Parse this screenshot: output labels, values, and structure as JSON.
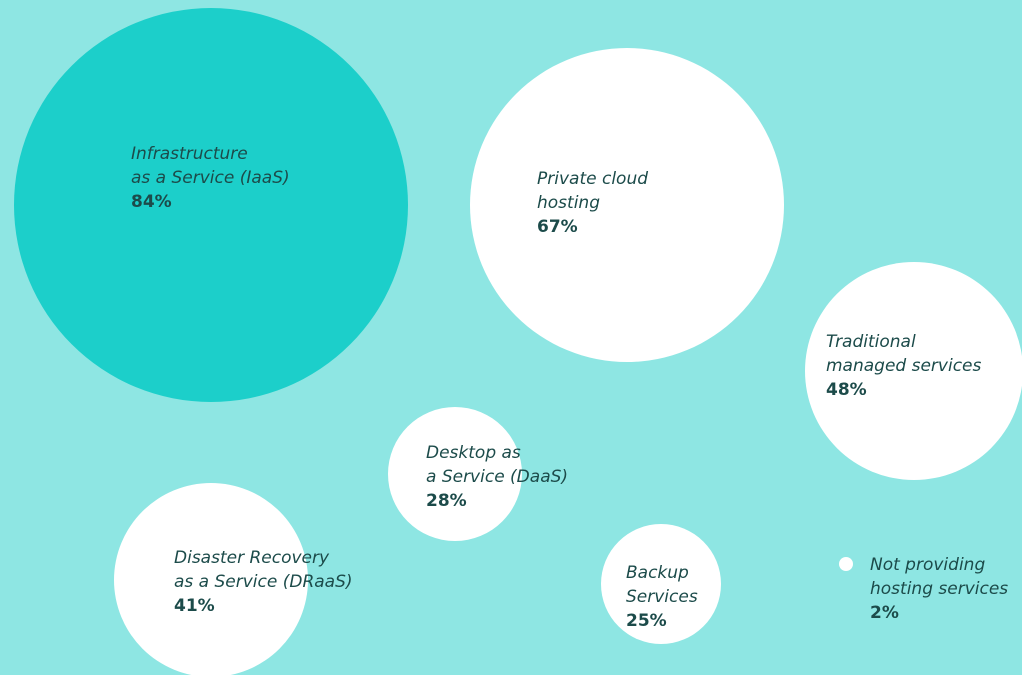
{
  "chart_data": {
    "type": "bubble",
    "unit": "%",
    "colors": {
      "background": "#8ee6e3",
      "highlight": "#1ccfca",
      "bubble": "#ffffff",
      "text": "#1c4b4a"
    },
    "series": [
      {
        "lines": [
          "Infrastructure",
          "as a Service (IaaS)"
        ],
        "value": 84,
        "display": "84%",
        "highlight": true
      },
      {
        "lines": [
          "Private cloud",
          "hosting"
        ],
        "value": 67,
        "display": "67%",
        "highlight": false
      },
      {
        "lines": [
          "Traditional",
          "managed services"
        ],
        "value": 48,
        "display": "48%",
        "highlight": false
      },
      {
        "lines": [
          "Desktop as",
          "a Service (DaaS)"
        ],
        "value": 28,
        "display": "28%",
        "highlight": false
      },
      {
        "lines": [
          "Disaster Recovery",
          "as a Service (DRaaS)"
        ],
        "value": 41,
        "display": "41%",
        "highlight": false
      },
      {
        "lines": [
          "Backup",
          "Services"
        ],
        "value": 25,
        "display": "25%",
        "highlight": false
      },
      {
        "lines": [
          "Not providing",
          "hosting services"
        ],
        "value": 2,
        "display": "2%",
        "highlight": false
      }
    ]
  }
}
